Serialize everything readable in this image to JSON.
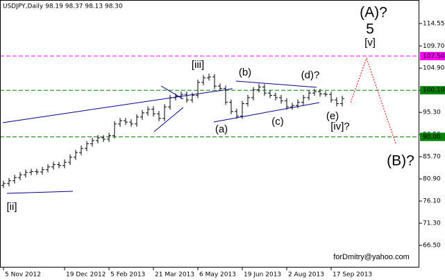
{
  "chart_data": {
    "type": "ohlc",
    "title": "USDJPY,Daily 98.19 98.37 98.13 98.30",
    "color": "#000000",
    "xlim": [
      -0.625,
      74.875
    ],
    "xticks": [
      {
        "value": 0,
        "label": "5 Nov 2012"
      },
      {
        "value": 11,
        "label": "19 Dec 2012"
      },
      {
        "value": 19,
        "label": "5 Feb 2013"
      },
      {
        "value": 27,
        "label": "21 Mar 2013"
      },
      {
        "value": 35,
        "label": "6 May 2013"
      },
      {
        "value": 43,
        "label": "19 Jun 2013"
      },
      {
        "value": 51,
        "label": "2 Aug 2013"
      },
      {
        "value": 59,
        "label": "17 Sep 2013"
      }
    ],
    "ylim": [
      61.7,
      119.65
    ],
    "yticks": [
      114.55,
      {
        "value": 109.7,
        "label": "109.70"
      },
      {
        "value": 104.9,
        "label": "104.90"
      },
      {
        "value": 100.1,
        "label": "100.10"
      },
      {
        "value": 95.3,
        "label": "95.30"
      },
      {
        "value": 90.5,
        "label": "90.50"
      },
      {
        "value": 85.7,
        "label": "85.70"
      },
      {
        "value": 80.9,
        "label": "80.90"
      },
      {
        "value": 76.1,
        "label": "76.10"
      },
      {
        "value": 71.3,
        "label": "71.30"
      },
      {
        "value": 66.5,
        "label": "66.50"
      }
    ],
    "grid": false,
    "open": [
      79.5,
      79.9,
      80.5,
      81.2,
      81.8,
      82.3,
      82.5,
      82.4,
      82.9,
      83.5,
      84.0,
      83.8,
      84.5,
      85.6,
      86.6,
      87.5,
      88.5,
      89.2,
      89.8,
      89.5,
      90.3,
      92.8,
      93.5,
      93.2,
      92.8,
      94.3,
      95.2,
      96.0,
      95.0,
      94.0,
      96.5,
      98.5,
      98.8,
      99.2,
      98.0,
      99.0,
      101.8,
      102.8,
      103.0,
      101.0,
      100.5,
      97.5,
      95.5,
      94.5,
      97.2,
      98.5,
      100.2,
      100.8,
      99.5,
      99.0,
      98.5,
      97.8,
      96.5,
      96.8,
      97.5,
      98.5,
      99.5,
      99.8,
      99.3,
      99.2,
      98.0,
      97.2
    ],
    "high": [
      80.5,
      81.1,
      81.8,
      82.4,
      82.9,
      83.1,
      83.1,
      83.5,
      84.1,
      84.6,
      84.6,
      85.1,
      86.2,
      87.2,
      88.1,
      89.1,
      89.8,
      90.4,
      90.4,
      90.9,
      93.4,
      94.1,
      94.1,
      93.8,
      94.9,
      95.8,
      96.6,
      96.6,
      95.6,
      97.1,
      99.1,
      99.4,
      99.8,
      99.8,
      99.6,
      102.4,
      103.4,
      103.7,
      103.6,
      101.6,
      101.1,
      98.1,
      96.1,
      97.8,
      99.1,
      100.8,
      101.5,
      101.4,
      100.1,
      99.6,
      99.1,
      98.4,
      97.4,
      98.1,
      99.1,
      100.1,
      100.4,
      100.4,
      99.9,
      99.8,
      98.6,
      98.9
    ],
    "low": [
      78.9,
      79.3,
      79.9,
      80.6,
      81.2,
      81.7,
      81.8,
      81.8,
      82.3,
      82.9,
      83.2,
      83.2,
      83.9,
      85.0,
      86.0,
      86.9,
      87.9,
      88.6,
      88.9,
      88.9,
      89.7,
      92.2,
      92.6,
      92.2,
      92.2,
      93.7,
      94.6,
      94.4,
      93.4,
      93.4,
      95.9,
      97.9,
      98.2,
      97.4,
      97.4,
      98.4,
      101.2,
      102.2,
      100.4,
      99.9,
      96.9,
      94.9,
      93.9,
      93.9,
      96.6,
      97.9,
      99.6,
      98.9,
      98.4,
      97.9,
      97.2,
      95.9,
      95.9,
      96.2,
      96.9,
      97.9,
      98.9,
      98.7,
      98.7,
      97.4,
      96.6,
      96.6
    ],
    "close": [
      79.9,
      80.5,
      81.2,
      81.8,
      82.3,
      82.5,
      82.4,
      82.9,
      83.5,
      84.0,
      83.8,
      84.5,
      85.6,
      86.6,
      87.5,
      88.5,
      89.2,
      89.8,
      89.5,
      90.3,
      92.8,
      93.5,
      93.2,
      92.8,
      94.3,
      95.2,
      96.0,
      95.0,
      94.0,
      96.5,
      98.5,
      98.8,
      99.2,
      98.0,
      99.0,
      101.8,
      102.8,
      103.0,
      101.0,
      100.5,
      97.5,
      95.5,
      94.5,
      97.2,
      98.5,
      100.2,
      100.8,
      99.5,
      99.0,
      98.5,
      97.8,
      96.5,
      96.8,
      97.5,
      98.5,
      99.5,
      99.8,
      99.3,
      99.2,
      98.0,
      97.2,
      98.3
    ],
    "levels": [
      {
        "value": 107.5,
        "label": "107.50",
        "color": "#ff00ff"
      },
      {
        "value": 100.1,
        "label": "100.10",
        "color": "#008000"
      },
      {
        "value": 90.0,
        "label": "90.00",
        "color": "#008000"
      }
    ],
    "annotations": [
      {
        "text": "(A)?",
        "color": "#1a1acc"
      },
      {
        "text": "5",
        "color": "#a52a2a"
      },
      {
        "text": "[v]",
        "color": "#2e8b2e"
      },
      {
        "text": "[iii]",
        "color": "#2e8b2e"
      },
      {
        "text": "(b)",
        "color": "#1a1acc"
      },
      {
        "text": "(d)?",
        "color": "#1a1acc"
      },
      {
        "text": "(a)",
        "color": "#1a1acc"
      },
      {
        "text": "(c)",
        "color": "#1a1acc"
      },
      {
        "text": "(e)",
        "color": "#1a1acc"
      },
      {
        "text": "[iv]?",
        "color": "#2e8b2e"
      },
      {
        "text": "[ii]",
        "color": "#2e8b2e"
      },
      {
        "text": "(B)?",
        "color": "#1a1acc"
      },
      {
        "text": "forDmitry@yahoo.com",
        "color": "#000080"
      }
    ]
  }
}
